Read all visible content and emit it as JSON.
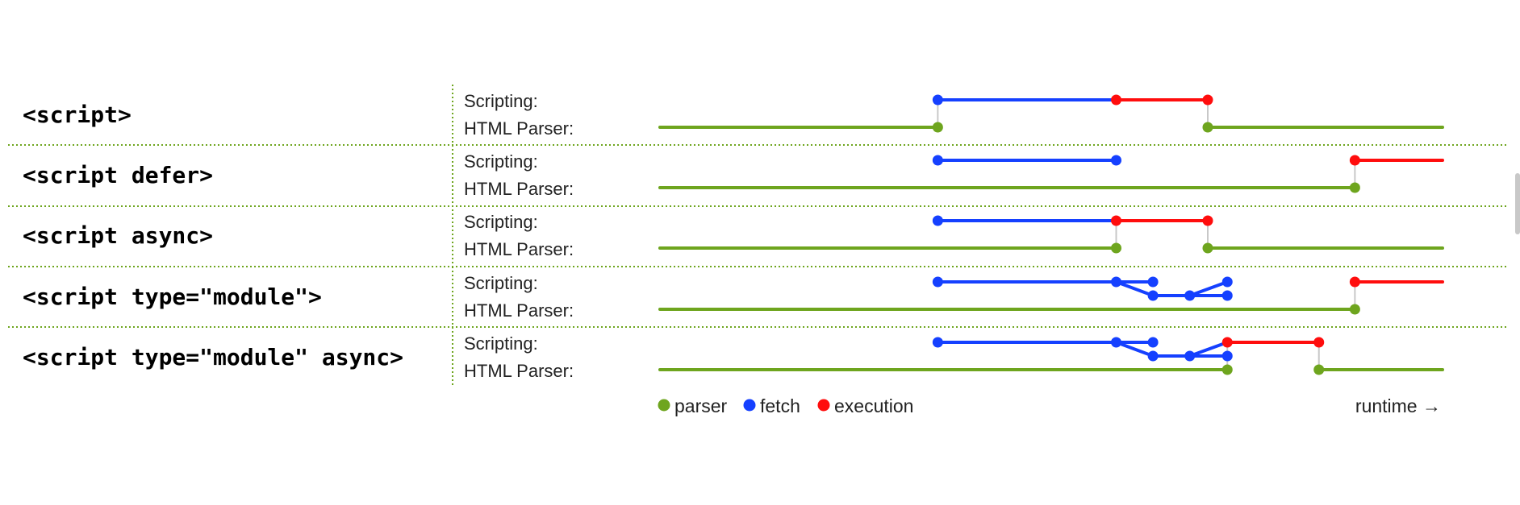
{
  "colors": {
    "parser": "#6ea51e",
    "fetch": "#1540ff",
    "execution": "#ff0d0d",
    "connector": "#c8c8c8",
    "divider": "#6ea51e"
  },
  "track_labels": {
    "scripting": "Scripting:",
    "parser": "HTML Parser:"
  },
  "rows": [
    {
      "label": "<script>",
      "segments": [
        {
          "kind": "parser",
          "track": "parser",
          "from": 0,
          "to": 0.355
        },
        {
          "kind": "fetch",
          "track": "script",
          "from": 0.355,
          "to": 0.583
        },
        {
          "kind": "execution",
          "track": "script",
          "from": 0.583,
          "to": 0.7
        },
        {
          "kind": "parser",
          "track": "parser",
          "from": 0.7,
          "to": 1.0
        }
      ],
      "connectors": [
        0.355,
        0.7
      ],
      "dots": [
        {
          "kind": "fetch",
          "track": "script",
          "t": 0.355
        },
        {
          "kind": "execution",
          "track": "script",
          "t": 0.583
        },
        {
          "kind": "execution",
          "track": "script",
          "t": 0.7
        },
        {
          "kind": "parser",
          "track": "parser",
          "t": 0.355
        },
        {
          "kind": "parser",
          "track": "parser",
          "t": 0.7
        }
      ]
    },
    {
      "label": "<script defer>",
      "segments": [
        {
          "kind": "parser",
          "track": "parser",
          "from": 0,
          "to": 0.888
        },
        {
          "kind": "fetch",
          "track": "script",
          "from": 0.355,
          "to": 0.583
        },
        {
          "kind": "execution",
          "track": "script",
          "from": 0.888,
          "to": 1.0
        }
      ],
      "connectors": [
        0.888
      ],
      "dots": [
        {
          "kind": "fetch",
          "track": "script",
          "t": 0.355
        },
        {
          "kind": "fetch",
          "track": "script",
          "t": 0.583
        },
        {
          "kind": "execution",
          "track": "script",
          "t": 0.888
        },
        {
          "kind": "parser",
          "track": "parser",
          "t": 0.888
        }
      ]
    },
    {
      "label": "<script async>",
      "segments": [
        {
          "kind": "parser",
          "track": "parser",
          "from": 0,
          "to": 0.583
        },
        {
          "kind": "fetch",
          "track": "script",
          "from": 0.355,
          "to": 0.583
        },
        {
          "kind": "execution",
          "track": "script",
          "from": 0.583,
          "to": 0.7
        },
        {
          "kind": "parser",
          "track": "parser",
          "from": 0.7,
          "to": 1.0
        }
      ],
      "connectors": [
        0.583,
        0.7
      ],
      "dots": [
        {
          "kind": "fetch",
          "track": "script",
          "t": 0.355
        },
        {
          "kind": "execution",
          "track": "script",
          "t": 0.583
        },
        {
          "kind": "execution",
          "track": "script",
          "t": 0.7
        },
        {
          "kind": "parser",
          "track": "parser",
          "t": 0.583
        },
        {
          "kind": "parser",
          "track": "parser",
          "t": 0.7
        }
      ]
    },
    {
      "label": "<script type=\"module\">",
      "segments": [
        {
          "kind": "parser",
          "track": "parser",
          "from": 0,
          "to": 0.888
        },
        {
          "kind": "fetch",
          "track": "script",
          "from": 0.355,
          "to": 0.583
        },
        {
          "kind": "fetch",
          "track": "script",
          "from": 0.583,
          "to": 0.63
        },
        {
          "kind": "fetch",
          "track": "script",
          "from": 0.583,
          "to": 0.63,
          "drop": [
            0,
            1
          ]
        },
        {
          "kind": "fetch",
          "track": "sub",
          "from": 0.63,
          "to": 0.725
        },
        {
          "kind": "fetch",
          "track": "script",
          "from": 0.677,
          "to": 0.725,
          "drop": [
            1,
            0
          ]
        },
        {
          "kind": "execution",
          "track": "script",
          "from": 0.888,
          "to": 1.0
        }
      ],
      "connectors": [
        0.888
      ],
      "dots": [
        {
          "kind": "fetch",
          "track": "script",
          "t": 0.355
        },
        {
          "kind": "fetch",
          "track": "script",
          "t": 0.583
        },
        {
          "kind": "fetch",
          "track": "script",
          "t": 0.63
        },
        {
          "kind": "fetch",
          "track": "sub",
          "t": 0.63
        },
        {
          "kind": "fetch",
          "track": "sub",
          "t": 0.677
        },
        {
          "kind": "fetch",
          "track": "sub",
          "t": 0.725
        },
        {
          "kind": "fetch",
          "track": "script",
          "t": 0.725
        },
        {
          "kind": "execution",
          "track": "script",
          "t": 0.888
        },
        {
          "kind": "parser",
          "track": "parser",
          "t": 0.888
        }
      ]
    },
    {
      "label": "<script type=\"module\" async>",
      "segments": [
        {
          "kind": "parser",
          "track": "parser",
          "from": 0,
          "to": 0.725
        },
        {
          "kind": "fetch",
          "track": "script",
          "from": 0.355,
          "to": 0.583
        },
        {
          "kind": "fetch",
          "track": "script",
          "from": 0.583,
          "to": 0.63
        },
        {
          "kind": "fetch",
          "track": "script",
          "from": 0.583,
          "to": 0.63,
          "drop": [
            0,
            1
          ]
        },
        {
          "kind": "fetch",
          "track": "sub",
          "from": 0.63,
          "to": 0.725
        },
        {
          "kind": "fetch",
          "track": "script",
          "from": 0.677,
          "to": 0.725,
          "drop": [
            1,
            0
          ]
        },
        {
          "kind": "execution",
          "track": "script",
          "from": 0.725,
          "to": 0.842
        },
        {
          "kind": "parser",
          "track": "parser",
          "from": 0.842,
          "to": 1.0
        }
      ],
      "connectors": [
        0.725,
        0.842
      ],
      "dots": [
        {
          "kind": "fetch",
          "track": "script",
          "t": 0.355
        },
        {
          "kind": "fetch",
          "track": "script",
          "t": 0.583
        },
        {
          "kind": "fetch",
          "track": "script",
          "t": 0.63
        },
        {
          "kind": "fetch",
          "track": "sub",
          "t": 0.63
        },
        {
          "kind": "fetch",
          "track": "sub",
          "t": 0.677
        },
        {
          "kind": "fetch",
          "track": "sub",
          "t": 0.725
        },
        {
          "kind": "execution",
          "track": "script",
          "t": 0.725
        },
        {
          "kind": "execution",
          "track": "script",
          "t": 0.842
        },
        {
          "kind": "parser",
          "track": "parser",
          "t": 0.725
        },
        {
          "kind": "parser",
          "track": "parser",
          "t": 0.842
        }
      ]
    }
  ],
  "legend": [
    {
      "kind": "parser",
      "label": "parser"
    },
    {
      "kind": "fetch",
      "label": "fetch"
    },
    {
      "kind": "execution",
      "label": "execution"
    }
  ],
  "runtime_label": "runtime →"
}
